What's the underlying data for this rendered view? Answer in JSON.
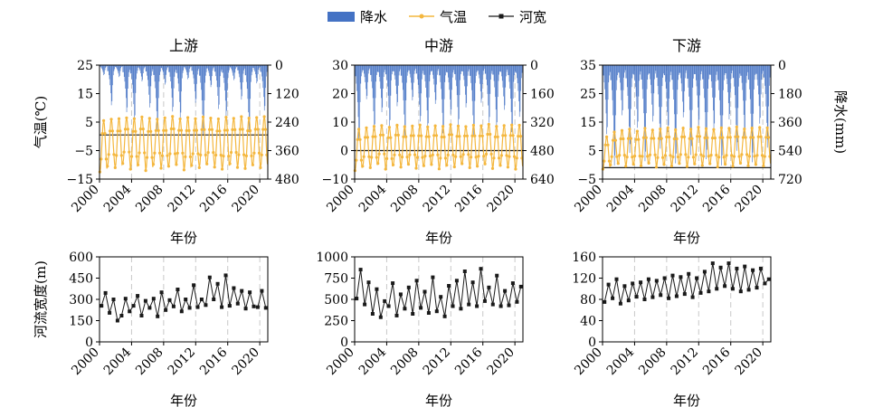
{
  "legend": {
    "precip": "降水",
    "temp": "气温",
    "width": "河宽"
  },
  "colors": {
    "precip": "#4472C4",
    "temp": "#F4B73E",
    "width": "#1a1a1a",
    "grid": "#c8c8c8"
  },
  "chart_data": [
    {
      "type": "bar+line",
      "title": "上游",
      "xlabel": "年份",
      "ylabel": "气温(℃)",
      "y2label": "",
      "xlim": [
        2000,
        2021
      ],
      "xticks": [
        "2000",
        "2004",
        "2008",
        "2012",
        "2016",
        "2020"
      ],
      "ylim": [
        -15,
        25
      ],
      "yticks": [
        "25",
        "15",
        "5",
        "−5",
        "−15"
      ],
      "y2lim": [
        0,
        480
      ],
      "y2ticks": [
        "0",
        "120",
        "240",
        "360",
        "480"
      ],
      "width_ref": 0.5,
      "precip_annual": [
        32,
        128,
        38,
        150,
        178,
        52,
        135,
        210,
        62,
        148,
        168,
        45,
        120,
        225,
        70,
        140,
        162,
        48,
        110,
        215,
        58,
        145
      ],
      "temp_summer": [
        5.5,
        6.0,
        6.2,
        6.5,
        6.2,
        6.8,
        6.3,
        6.0,
        6.5,
        7.0,
        6.1,
        6.6,
        6.2,
        6.8,
        6.4,
        6.1,
        6.7,
        6.3,
        6.9,
        6.4,
        6.6,
        6.9
      ],
      "temp_winter": [
        -12.5,
        -10.5,
        -11.0,
        -9.5,
        -11.5,
        -10.0,
        -12.0,
        -9.8,
        -11.2,
        -10.5,
        -9.9,
        -11.8,
        -10.2,
        -11.0,
        -9.7,
        -10.8,
        -11.5,
        -9.6,
        -10.9,
        -11.3,
        -10.0,
        -11.0
      ]
    },
    {
      "type": "bar+line",
      "title": "中游",
      "xlabel": "年份",
      "ylabel": "",
      "y2label": "",
      "xlim": [
        2000,
        2021
      ],
      "xticks": [
        "2000",
        "2004",
        "2008",
        "2012",
        "2016",
        "2020"
      ],
      "ylim": [
        -10,
        30
      ],
      "yticks": [
        "30",
        "20",
        "10",
        "0",
        "−10"
      ],
      "y2lim": [
        0,
        640
      ],
      "y2ticks": [
        "0",
        "160",
        "320",
        "480",
        "640"
      ],
      "width_ref": 0.0,
      "precip_annual": [
        315,
        145,
        280,
        200,
        260,
        175,
        300,
        150,
        240,
        275,
        165,
        290,
        210,
        255,
        180,
        305,
        160,
        245,
        270,
        190,
        285,
        220
      ],
      "temp_summer": [
        7.5,
        8.0,
        8.5,
        8.8,
        8.2,
        8.9,
        8.4,
        8.6,
        9.0,
        8.3,
        8.7,
        8.5,
        9.1,
        8.6,
        8.4,
        8.9,
        8.7,
        9.2,
        8.5,
        8.8,
        9.0,
        8.9
      ],
      "temp_winter": [
        -7.0,
        -5.5,
        -6.0,
        -4.5,
        -6.5,
        -5.0,
        -5.8,
        -4.8,
        -6.2,
        -5.3,
        -4.9,
        -6.4,
        -5.1,
        -5.7,
        -4.6,
        -6.0,
        -5.5,
        -4.7,
        -6.3,
        -5.2,
        -5.8,
        -6.5
      ]
    },
    {
      "type": "bar+line",
      "title": "下游",
      "xlabel": "年份",
      "ylabel": "",
      "y2label": "降水(mm)",
      "xlim": [
        2000,
        2021
      ],
      "xticks": [
        "2000",
        "2004",
        "2008",
        "2012",
        "2016",
        "2020"
      ],
      "ylim": [
        -5,
        35
      ],
      "yticks": [
        "35",
        "25",
        "15",
        "5",
        "−5"
      ],
      "y2lim": [
        0,
        720
      ],
      "y2ticks": [
        "0",
        "180",
        "360",
        "540",
        "720"
      ],
      "width_ref": -1.0,
      "precip_annual": [
        330,
        480,
        240,
        420,
        300,
        460,
        270,
        400,
        320,
        470,
        250,
        430,
        290,
        450,
        310,
        480,
        260,
        410,
        340,
        465,
        280,
        395
      ],
      "temp_summer": [
        9.8,
        11.5,
        12.0,
        12.5,
        11.8,
        12.8,
        12.2,
        12.6,
        13.0,
        12.3,
        12.9,
        12.5,
        13.2,
        12.7,
        12.4,
        13.0,
        12.8,
        13.3,
        12.6,
        12.9,
        13.1,
        13.0
      ],
      "temp_winter": [
        -1.5,
        0.0,
        0.5,
        -0.5,
        0.2,
        -0.3,
        0.6,
        -0.8,
        0.1,
        -0.4,
        0.5,
        -0.6,
        0.3,
        -0.2,
        0.4,
        -0.7,
        0.2,
        -0.5,
        0.6,
        -0.3,
        0.1,
        -0.4
      ]
    },
    {
      "type": "line",
      "title": "",
      "xlabel": "年份",
      "ylabel": "河流宽度(m)",
      "xlim": [
        2000,
        2021
      ],
      "xticks": [
        "2000",
        "2004",
        "2008",
        "2012",
        "2016",
        "2020"
      ],
      "ylim": [
        0,
        600
      ],
      "yticks": [
        "600",
        "450",
        "300",
        "150",
        "0"
      ],
      "width": [
        255,
        345,
        205,
        300,
        150,
        185,
        305,
        215,
        255,
        325,
        185,
        290,
        240,
        305,
        180,
        350,
        225,
        295,
        250,
        370,
        215,
        300,
        240,
        400,
        245,
        300,
        260,
        455,
        300,
        410,
        245,
        470,
        255,
        380,
        270,
        360,
        235,
        350,
        250,
        245,
        360,
        240
      ]
    },
    {
      "type": "line",
      "title": "",
      "xlabel": "年份",
      "ylabel": "",
      "xlim": [
        2000,
        2021
      ],
      "xticks": [
        "2000",
        "2004",
        "2008",
        "2012",
        "2016",
        "2020"
      ],
      "ylim": [
        0,
        1000
      ],
      "yticks": [
        "1000",
        "750",
        "500",
        "250",
        "0"
      ],
      "width": [
        510,
        850,
        440,
        700,
        330,
        620,
        290,
        480,
        420,
        690,
        310,
        560,
        390,
        640,
        330,
        720,
        400,
        590,
        340,
        760,
        360,
        530,
        300,
        660,
        420,
        720,
        390,
        830,
        440,
        700,
        420,
        860,
        480,
        640,
        440,
        780,
        420,
        600,
        430,
        690,
        470,
        650
      ]
    },
    {
      "type": "line",
      "title": "",
      "xlabel": "年份",
      "ylabel": "",
      "xlim": [
        2000,
        2021
      ],
      "xticks": [
        "2000",
        "2004",
        "2008",
        "2012",
        "2016",
        "2020"
      ],
      "ylim": [
        0,
        160
      ],
      "yticks": [
        "160",
        "120",
        "80",
        "40",
        "0"
      ],
      "width": [
        75,
        108,
        82,
        118,
        72,
        105,
        78,
        110,
        85,
        112,
        80,
        118,
        84,
        115,
        88,
        120,
        82,
        125,
        86,
        122,
        90,
        128,
        84,
        120,
        92,
        132,
        95,
        148,
        100,
        140,
        105,
        148,
        100,
        138,
        95,
        142,
        98,
        135,
        102,
        138,
        110,
        118
      ]
    }
  ]
}
